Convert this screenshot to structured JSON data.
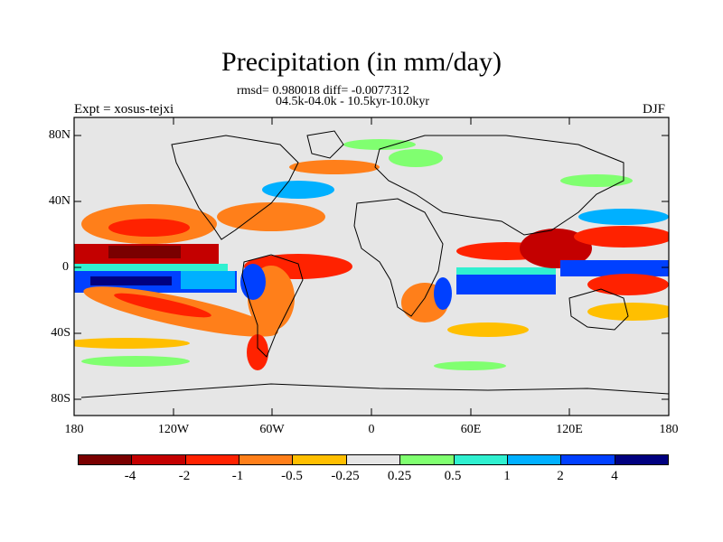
{
  "map": {
    "title": "Precipitation (in mm/day)",
    "stats_line": "rmsd= 0.980018 diff= -0.0077312",
    "period_line": "04.5k-04.0k - 10.5kyr-10.0kyr",
    "experiment_label": "Expt = xosus-tejxi",
    "season": "DJF",
    "lat_labels": [
      "80N",
      "40N",
      "0",
      "40S",
      "80S"
    ],
    "lon_labels": [
      "180",
      "120W",
      "60W",
      "0",
      "60E",
      "120E",
      "180"
    ],
    "colorbar": {
      "colors": [
        "#7a0000",
        "#c40000",
        "#ff2200",
        "#ff7f1a",
        "#ffbf00",
        "#e6e6e6",
        "#80ff70",
        "#30f0d0",
        "#00b0ff",
        "#0040ff",
        "#000080"
      ],
      "tick_labels": [
        "-4",
        "-2",
        "-1",
        "-0.5",
        "-0.25",
        "0.25",
        "0.5",
        "1",
        "2",
        "4"
      ]
    }
  }
}
